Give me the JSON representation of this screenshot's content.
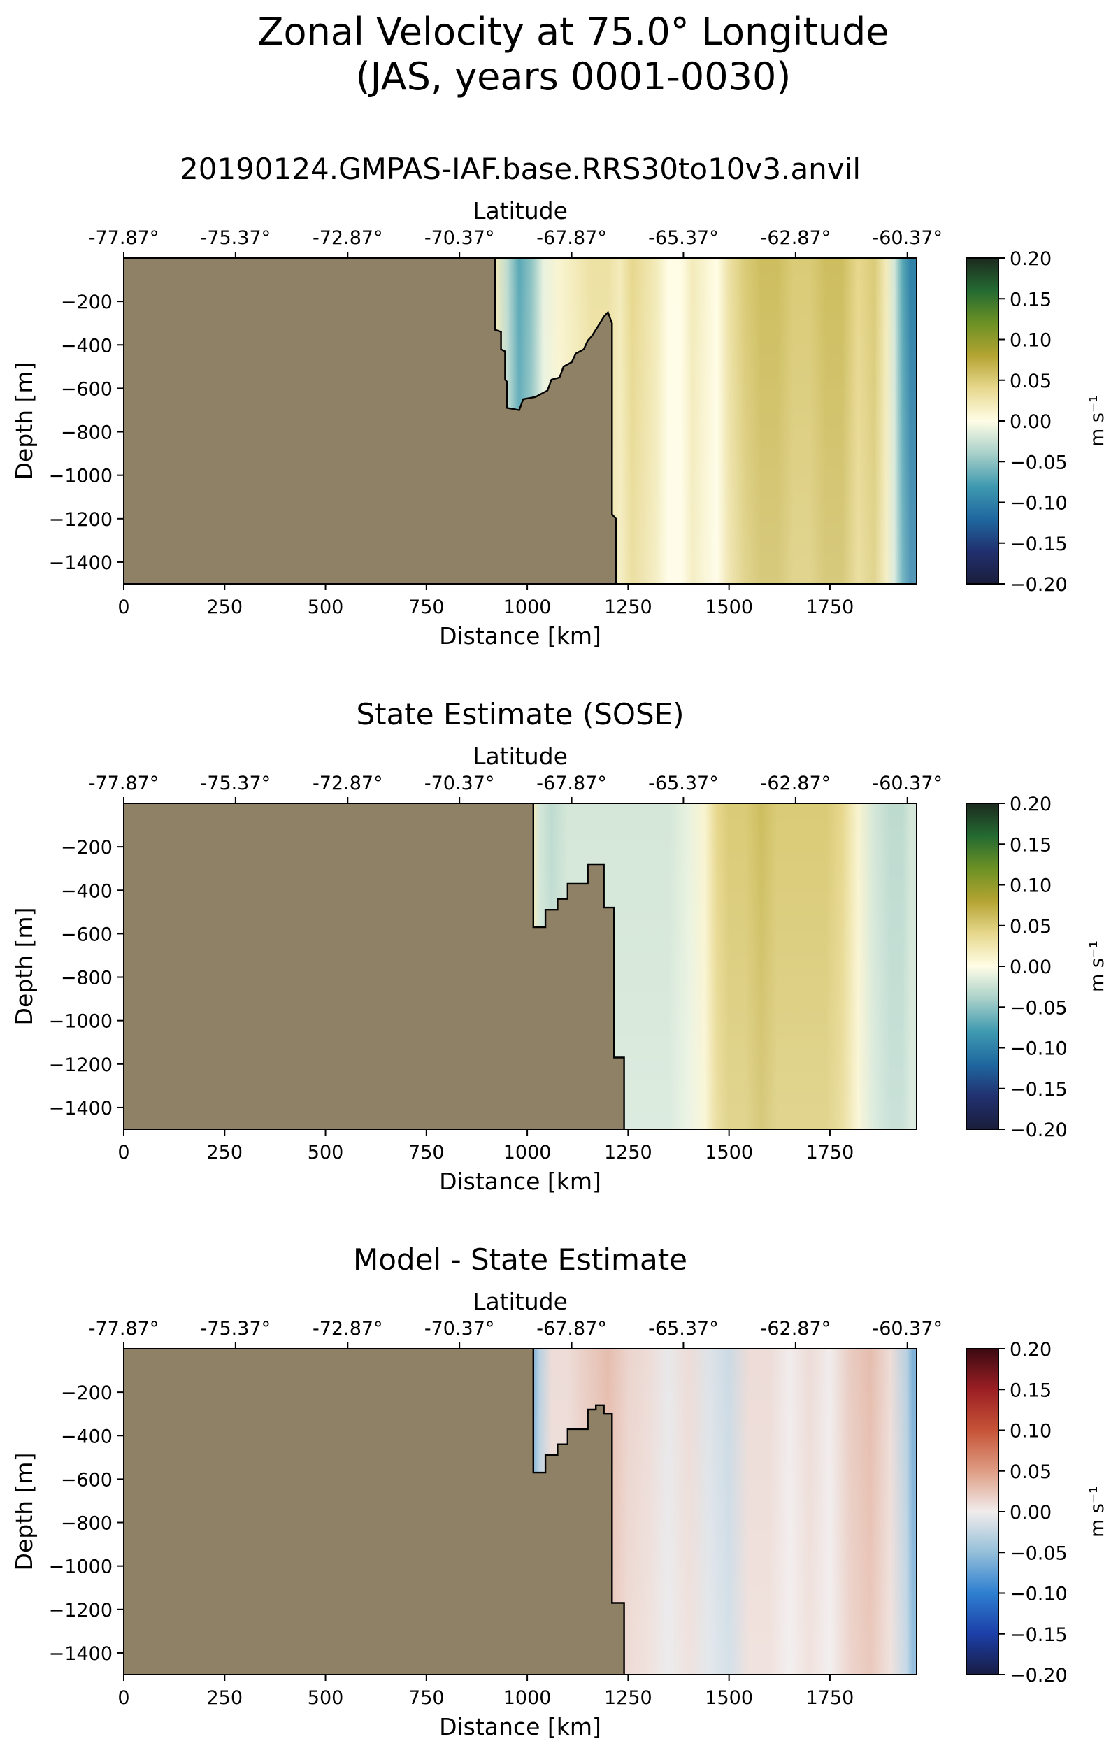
{
  "figure": {
    "title_line1": "Zonal Velocity at 75.0° Longitude",
    "title_line2": "(JAS, years 0001-0030)"
  },
  "chart_data": [
    {
      "type": "heatmap",
      "title": "20190124.GMPAS-IAF.base.RRS30to10v3.anvil",
      "xlabel": "Distance [km]",
      "ylabel": "Depth [m]",
      "top_axis_label": "Latitude",
      "colorbar_label": "m s⁻¹",
      "colormap": "delta",
      "xlim": [
        0,
        1965
      ],
      "ylim": [
        -1500,
        0
      ],
      "clim": [
        -0.2,
        0.2
      ],
      "x_ticks": [
        0,
        250,
        500,
        750,
        1000,
        1250,
        1500,
        1750
      ],
      "x_tick_labels": [
        "0",
        "250",
        "500",
        "750",
        "1000",
        "1250",
        "1500",
        "1750"
      ],
      "y_ticks": [
        -200,
        -400,
        -600,
        -800,
        -1000,
        -1200,
        -1400
      ],
      "y_tick_labels": [
        "−200",
        "−400",
        "−600",
        "−800",
        "−1000",
        "−1200",
        "−1400"
      ],
      "top_ticks": [
        0,
        277,
        555,
        832,
        1110,
        1387,
        1665,
        1942
      ],
      "top_tick_labels": [
        "-77.87°",
        "-75.37°",
        "-72.87°",
        "-70.37°",
        "-67.87°",
        "-65.37°",
        "-62.87°",
        "-60.37°"
      ],
      "colorbar_ticks": [
        0.2,
        0.15,
        0.1,
        0.05,
        0.0,
        -0.05,
        -0.1,
        -0.15,
        -0.2
      ],
      "colorbar_tick_labels": [
        "0.20",
        "0.15",
        "0.10",
        "0.05",
        "0.00",
        "−0.05",
        "−0.10",
        "−0.15",
        "−0.20"
      ],
      "land_color": "#8f8165",
      "bathymetry": [
        [
          920,
          0
        ],
        [
          920,
          -330
        ],
        [
          935,
          -340
        ],
        [
          935,
          -420
        ],
        [
          945,
          -430
        ],
        [
          945,
          -560
        ],
        [
          950,
          -570
        ],
        [
          950,
          -690
        ],
        [
          980,
          -700
        ],
        [
          990,
          -650
        ],
        [
          1020,
          -640
        ],
        [
          1050,
          -610
        ],
        [
          1060,
          -560
        ],
        [
          1080,
          -550
        ],
        [
          1090,
          -500
        ],
        [
          1110,
          -480
        ],
        [
          1120,
          -440
        ],
        [
          1140,
          -420
        ],
        [
          1150,
          -380
        ],
        [
          1160,
          -360
        ],
        [
          1170,
          -330
        ],
        [
          1180,
          -300
        ],
        [
          1190,
          -270
        ],
        [
          1200,
          -250
        ],
        [
          1210,
          -300
        ],
        [
          1210,
          -1180
        ],
        [
          1220,
          -1200
        ],
        [
          1220,
          -1500
        ]
      ],
      "columns": {
        "x": [
          920,
          950,
          980,
          1010,
          1040,
          1080,
          1120,
          1160,
          1200,
          1230,
          1260,
          1290,
          1320,
          1350,
          1380,
          1410,
          1440,
          1470,
          1500,
          1540,
          1580,
          1620,
          1660,
          1700,
          1740,
          1780,
          1820,
          1860,
          1890,
          1910,
          1930,
          1950
        ],
        "values": [
          0.02,
          -0.03,
          -0.07,
          -0.05,
          -0.01,
          0.01,
          0.02,
          0.03,
          0.03,
          0.02,
          0.04,
          0.03,
          0.02,
          0.0,
          0.0,
          0.02,
          0.01,
          0.0,
          0.03,
          0.05,
          0.06,
          0.06,
          0.05,
          0.05,
          0.06,
          0.06,
          0.04,
          0.05,
          0.02,
          -0.02,
          -0.07,
          -0.1
        ]
      }
    },
    {
      "type": "heatmap",
      "title": "State Estimate (SOSE)",
      "xlabel": "Distance [km]",
      "ylabel": "Depth [m]",
      "top_axis_label": "Latitude",
      "colorbar_label": "m s⁻¹",
      "colormap": "delta",
      "xlim": [
        0,
        1965
      ],
      "ylim": [
        -1500,
        0
      ],
      "clim": [
        -0.2,
        0.2
      ],
      "x_ticks": [
        0,
        250,
        500,
        750,
        1000,
        1250,
        1500,
        1750
      ],
      "x_tick_labels": [
        "0",
        "250",
        "500",
        "750",
        "1000",
        "1250",
        "1500",
        "1750"
      ],
      "y_ticks": [
        -200,
        -400,
        -600,
        -800,
        -1000,
        -1200,
        -1400
      ],
      "y_tick_labels": [
        "−200",
        "−400",
        "−600",
        "−800",
        "−1000",
        "−1200",
        "−1400"
      ],
      "top_ticks": [
        0,
        277,
        555,
        832,
        1110,
        1387,
        1665,
        1942
      ],
      "top_tick_labels": [
        "-77.87°",
        "-75.37°",
        "-72.87°",
        "-70.37°",
        "-67.87°",
        "-65.37°",
        "-62.87°",
        "-60.37°"
      ],
      "colorbar_ticks": [
        0.2,
        0.15,
        0.1,
        0.05,
        0.0,
        -0.05,
        -0.1,
        -0.15,
        -0.2
      ],
      "colorbar_tick_labels": [
        "0.20",
        "0.15",
        "0.10",
        "0.05",
        "0.00",
        "−0.05",
        "−0.10",
        "−0.15",
        "−0.20"
      ],
      "land_color": "#8f8165",
      "bathymetry": [
        [
          1015,
          0
        ],
        [
          1015,
          -570
        ],
        [
          1045,
          -570
        ],
        [
          1045,
          -490
        ],
        [
          1075,
          -490
        ],
        [
          1075,
          -440
        ],
        [
          1100,
          -440
        ],
        [
          1100,
          -370
        ],
        [
          1150,
          -370
        ],
        [
          1150,
          -280
        ],
        [
          1190,
          -280
        ],
        [
          1190,
          -480
        ],
        [
          1215,
          -480
        ],
        [
          1215,
          -1170
        ],
        [
          1240,
          -1170
        ],
        [
          1240,
          -1500
        ]
      ],
      "columns": {
        "x": [
          1015,
          1030,
          1060,
          1100,
          1150,
          1200,
          1250,
          1300,
          1350,
          1400,
          1440,
          1470,
          1500,
          1540,
          1580,
          1620,
          1660,
          1700,
          1740,
          1780,
          1820,
          1860,
          1900,
          1930,
          1950
        ],
        "values": [
          0.02,
          -0.02,
          -0.03,
          -0.02,
          -0.02,
          -0.02,
          -0.02,
          -0.02,
          -0.02,
          -0.01,
          0.01,
          0.04,
          0.05,
          0.05,
          0.06,
          0.05,
          0.05,
          0.05,
          0.05,
          0.04,
          0.01,
          -0.02,
          -0.03,
          -0.03,
          -0.02
        ]
      }
    },
    {
      "type": "heatmap",
      "title": "Model - State Estimate",
      "xlabel": "Distance [km]",
      "ylabel": "Depth [m]",
      "top_axis_label": "Latitude",
      "colorbar_label": "m s⁻¹",
      "colormap": "balance",
      "xlim": [
        0,
        1965
      ],
      "ylim": [
        -1500,
        0
      ],
      "clim": [
        -0.2,
        0.2
      ],
      "x_ticks": [
        0,
        250,
        500,
        750,
        1000,
        1250,
        1500,
        1750
      ],
      "x_tick_labels": [
        "0",
        "250",
        "500",
        "750",
        "1000",
        "1250",
        "1500",
        "1750"
      ],
      "y_ticks": [
        -200,
        -400,
        -600,
        -800,
        -1000,
        -1200,
        -1400
      ],
      "y_tick_labels": [
        "−200",
        "−400",
        "−600",
        "−800",
        "−1000",
        "−1200",
        "−1400"
      ],
      "top_ticks": [
        0,
        277,
        555,
        832,
        1110,
        1387,
        1665,
        1942
      ],
      "top_tick_labels": [
        "-77.87°",
        "-75.37°",
        "-72.87°",
        "-70.37°",
        "-67.87°",
        "-65.37°",
        "-62.87°",
        "-60.37°"
      ],
      "colorbar_ticks": [
        0.2,
        0.15,
        0.1,
        0.05,
        0.0,
        -0.05,
        -0.1,
        -0.15,
        -0.2
      ],
      "colorbar_tick_labels": [
        "0.20",
        "0.15",
        "0.10",
        "0.05",
        "0.00",
        "−0.05",
        "−0.10",
        "−0.15",
        "−0.20"
      ],
      "land_color": "#8f8165",
      "bathymetry": [
        [
          1015,
          0
        ],
        [
          1015,
          -570
        ],
        [
          1045,
          -570
        ],
        [
          1045,
          -490
        ],
        [
          1075,
          -490
        ],
        [
          1075,
          -440
        ],
        [
          1100,
          -440
        ],
        [
          1100,
          -370
        ],
        [
          1150,
          -370
        ],
        [
          1150,
          -280
        ],
        [
          1170,
          -280
        ],
        [
          1170,
          -260
        ],
        [
          1190,
          -260
        ],
        [
          1190,
          -300
        ],
        [
          1210,
          -300
        ],
        [
          1210,
          -1170
        ],
        [
          1240,
          -1170
        ],
        [
          1240,
          -1500
        ]
      ],
      "columns": {
        "x": [
          1015,
          1030,
          1060,
          1100,
          1150,
          1200,
          1250,
          1300,
          1350,
          1400,
          1450,
          1500,
          1550,
          1600,
          1650,
          1700,
          1750,
          1800,
          1850,
          1900,
          1940,
          1955
        ],
        "values": [
          -0.06,
          -0.03,
          0.01,
          0.01,
          0.02,
          0.03,
          0.015,
          0.01,
          -0.005,
          0.01,
          -0.01,
          -0.02,
          0.01,
          0.01,
          0.0,
          0.01,
          0.0,
          0.02,
          0.03,
          0.01,
          -0.03,
          -0.06
        ]
      }
    }
  ]
}
